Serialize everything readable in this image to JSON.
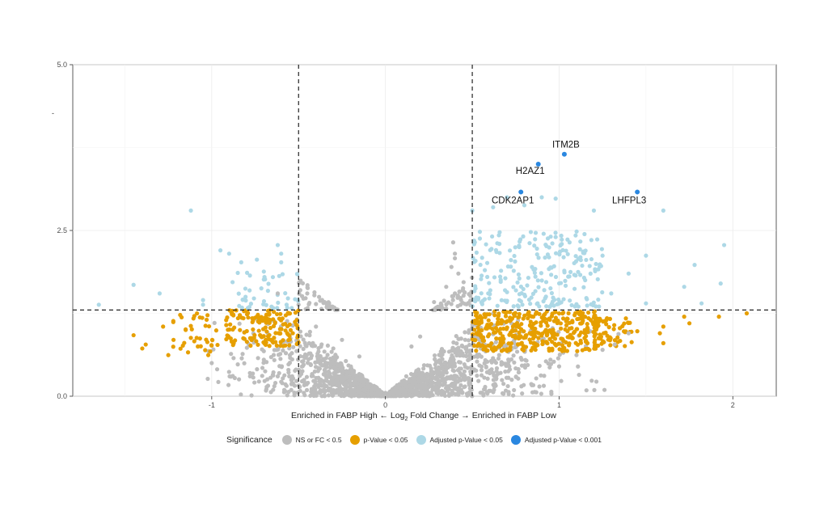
{
  "chart_data": {
    "type": "scatter",
    "title": "",
    "xlabel_parts": [
      "Enriched in FABP High ← Log",
      "2",
      " Fold Change → Enriched in FABP Low"
    ],
    "ylabel": "-",
    "xlim": [
      -1.8,
      2.25
    ],
    "ylim": [
      0,
      5.0
    ],
    "x_ticks": [
      -1,
      0,
      1,
      2
    ],
    "x_tick_labels": [
      "-1",
      "0",
      "1",
      "2"
    ],
    "y_ticks": [
      0,
      2.5,
      5.0
    ],
    "y_tick_labels": [
      "0.0",
      "2.5",
      "5.0"
    ],
    "grid": true,
    "thresholds": {
      "fc_left": -0.5,
      "fc_right": 0.5,
      "neg_log10_p": 1.3
    },
    "legend_position": "bottom",
    "legend_title": "Significance",
    "colors": {
      "ns": "#bdbdbd",
      "p": "#e69f00",
      "adj": "#add8e6",
      "adj001": "#2a87e0"
    },
    "series": [
      {
        "name": "NS or FC < 0.5",
        "color_key": "ns",
        "points": [
          [
            -0.62,
            1.55
          ],
          [
            -0.5,
            1.38
          ],
          [
            -0.45,
            1.55
          ],
          [
            -0.35,
            1.42
          ],
          [
            -0.05,
            0.02
          ],
          [
            0.05,
            0.01
          ],
          [
            0.0,
            0.05
          ],
          [
            0.12,
            0.3
          ],
          [
            0.28,
            1.42
          ],
          [
            0.35,
            1.65
          ],
          [
            0.4,
            1.55
          ],
          [
            0.45,
            1.72
          ],
          [
            0.38,
            1.95
          ],
          [
            0.4,
            2.08
          ],
          [
            0.4,
            2.15
          ],
          [
            0.39,
            2.32
          ],
          [
            0.42,
            1.85
          ],
          [
            0.2,
            0.9
          ],
          [
            0.15,
            0.75
          ],
          [
            -0.15,
            0.6
          ],
          [
            -0.25,
            0.85
          ],
          [
            -0.3,
            0.72
          ],
          [
            -0.4,
            1.05
          ],
          [
            -0.55,
            0.62
          ],
          [
            -0.7,
            0.55
          ],
          [
            -0.85,
            0.48
          ],
          [
            -1.0,
            0.5
          ],
          [
            -0.78,
            0.35
          ],
          [
            -0.62,
            0.3
          ],
          [
            0.62,
            0.35
          ],
          [
            0.75,
            0.42
          ],
          [
            0.95,
            0.55
          ],
          [
            1.1,
            0.62
          ],
          [
            1.25,
            0.7
          ],
          [
            1.0,
            0.45
          ],
          [
            1.4,
            0.95
          ],
          [
            1.32,
            0.78
          ]
        ]
      },
      {
        "name": "p-Value < 0.05",
        "color_key": "p",
        "points": [
          [
            2.08,
            1.25
          ],
          [
            1.92,
            1.2
          ],
          [
            1.72,
            1.2
          ],
          [
            1.75,
            1.1
          ],
          [
            1.6,
            1.05
          ],
          [
            1.58,
            0.95
          ],
          [
            1.6,
            0.8
          ],
          [
            1.45,
            0.98
          ],
          [
            -1.4,
            0.72
          ],
          [
            -1.45,
            0.92
          ],
          [
            -1.38,
            0.78
          ],
          [
            -1.28,
            1.05
          ],
          [
            -1.22,
            0.85
          ],
          [
            -1.25,
            0.62
          ],
          [
            -1.12,
            0.88
          ],
          [
            -1.08,
            0.75
          ],
          [
            -1.02,
            0.62
          ],
          [
            -1.15,
            1.0
          ]
        ]
      },
      {
        "name": "Adjusted p-Value < 0.05",
        "color_key": "adj",
        "points": [
          [
            -1.12,
            2.8
          ],
          [
            -1.05,
            1.45
          ],
          [
            -1.05,
            1.38
          ],
          [
            -1.3,
            1.55
          ],
          [
            -1.45,
            1.68
          ],
          [
            -1.65,
            1.38
          ],
          [
            -0.95,
            2.2
          ],
          [
            -0.9,
            2.15
          ],
          [
            -0.83,
            2.02
          ],
          [
            -0.74,
            2.06
          ],
          [
            -0.62,
            2.28
          ],
          [
            -0.6,
            2.15
          ],
          [
            -0.6,
            2.02
          ],
          [
            -0.85,
            1.86
          ],
          [
            -0.78,
            1.82
          ],
          [
            -0.7,
            1.88
          ],
          [
            -0.7,
            1.76
          ],
          [
            -0.88,
            1.72
          ],
          [
            0.5,
            2.8
          ],
          [
            0.62,
            2.85
          ],
          [
            0.7,
            3.0
          ],
          [
            0.8,
            2.88
          ],
          [
            0.9,
            3.0
          ],
          [
            0.98,
            2.98
          ],
          [
            1.2,
            2.8
          ],
          [
            1.6,
            2.8
          ],
          [
            0.98,
            2.4
          ],
          [
            1.06,
            2.32
          ],
          [
            1.5,
            2.12
          ],
          [
            1.78,
            1.98
          ],
          [
            1.95,
            2.28
          ],
          [
            1.93,
            1.7
          ],
          [
            1.72,
            1.65
          ],
          [
            1.82,
            1.4
          ],
          [
            1.5,
            1.4
          ],
          [
            1.3,
            1.55
          ],
          [
            1.15,
            1.75
          ],
          [
            1.4,
            1.85
          ],
          [
            1.25,
            2.12
          ]
        ]
      },
      {
        "name": "Adjusted p-Value < 0.001",
        "color_key": "adj001",
        "points": [
          [
            1.03,
            3.65
          ],
          [
            0.88,
            3.5
          ],
          [
            0.78,
            3.08
          ],
          [
            1.45,
            3.08
          ]
        ]
      }
    ],
    "annotations": [
      {
        "label": "ITM2B",
        "x": 1.03,
        "y": 3.65
      },
      {
        "label": "H2AZ1",
        "x": 0.88,
        "y": 3.5
      },
      {
        "label": "CDK2AP1",
        "x": 0.78,
        "y": 3.08
      },
      {
        "label": "LHFPL3",
        "x": 1.45,
        "y": 3.08
      }
    ]
  },
  "legend": {
    "title": "Significance",
    "items": [
      {
        "label": "NS or FC < 0.5",
        "color": "#bdbdbd"
      },
      {
        "label": "p-Value < 0.05",
        "color": "#e69f00"
      },
      {
        "label": "Adjusted p-Value < 0.05",
        "color": "#add8e6"
      },
      {
        "label": "Adjusted p-Value < 0.001",
        "color": "#2a87e0"
      }
    ]
  }
}
